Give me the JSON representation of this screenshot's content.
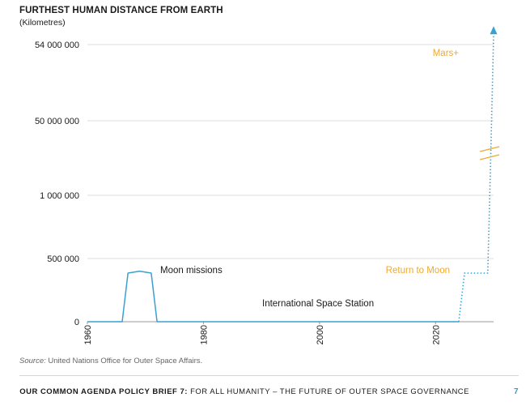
{
  "chart_data": {
    "type": "line",
    "title": "FURTHEST HUMAN DISTANCE FROM EARTH",
    "subtitle": "(Kilometres)",
    "xlabel": "",
    "ylabel": "",
    "x_ticks": [
      "1960",
      "1980",
      "2000",
      "2020"
    ],
    "y_ticks": [
      "0",
      "500 000",
      "1 000 000",
      "50 000 000",
      "54 000 000"
    ],
    "y_scale": "broken",
    "grid": true,
    "series": [
      {
        "style": "solid",
        "points": [
          [
            1960,
            0
          ],
          [
            1966,
            0
          ],
          [
            1967,
            384400
          ],
          [
            1969,
            400000
          ],
          [
            1971,
            384400
          ],
          [
            1972,
            0
          ],
          [
            2024,
            0
          ]
        ]
      },
      {
        "style": "dotted",
        "points": [
          [
            2024,
            0
          ],
          [
            2025,
            384400
          ],
          [
            2029,
            384400
          ],
          [
            2029.5,
            20000000
          ],
          [
            2030,
            54500000
          ]
        ]
      }
    ],
    "annotations": {
      "moon": "Moon missions",
      "iss": "International Space Station",
      "return_moon": "Return to Moon",
      "mars": "Mars+"
    },
    "colors": {
      "line": "#3aa0d2",
      "highlight": "#f0a830",
      "grid": "#dcdcdc",
      "axis": "#999999"
    }
  },
  "source": {
    "label": "Source:",
    "text": " United Nations Office for Outer Space Affairs."
  },
  "footer": {
    "bold": "OUR COMMON AGENDA POLICY BRIEF 7:",
    "text": " FOR ALL HUMANITY – THE FUTURE OF OUTER SPACE GOVERNANCE",
    "page": "7"
  }
}
